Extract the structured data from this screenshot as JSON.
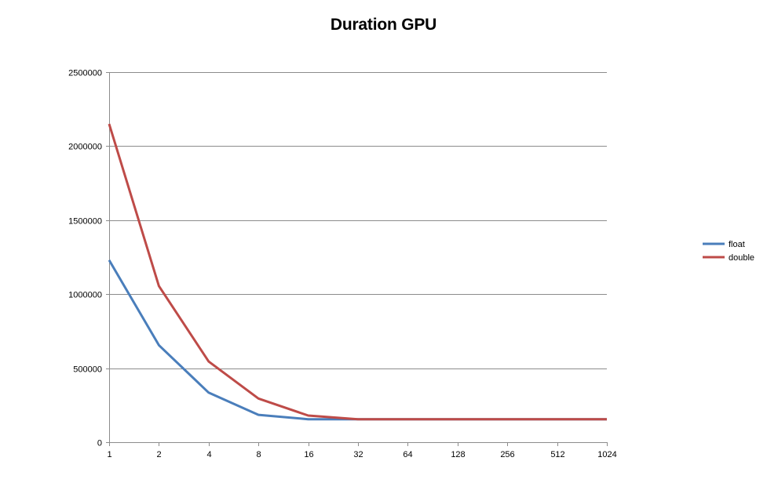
{
  "chart_data": {
    "type": "line",
    "title": "Duration GPU",
    "xlabel": "",
    "ylabel": "",
    "categories": [
      "1",
      "2",
      "4",
      "8",
      "16",
      "32",
      "64",
      "128",
      "256",
      "512",
      "1024"
    ],
    "series": [
      {
        "name": "float",
        "color": "#4a7ebb",
        "values": [
          1230000,
          655000,
          335000,
          185000,
          155000,
          155000,
          155000,
          155000,
          155000,
          155000,
          155000
        ]
      },
      {
        "name": "double",
        "color": "#be4b48",
        "values": [
          2150000,
          1055000,
          545000,
          295000,
          180000,
          155000,
          155000,
          155000,
          155000,
          155000,
          155000
        ]
      }
    ],
    "ylim": [
      0,
      2500000
    ],
    "yticks": [
      "0",
      "500000",
      "1000000",
      "1500000",
      "2000000",
      "2500000"
    ],
    "grid": true,
    "legend_position": "right"
  }
}
